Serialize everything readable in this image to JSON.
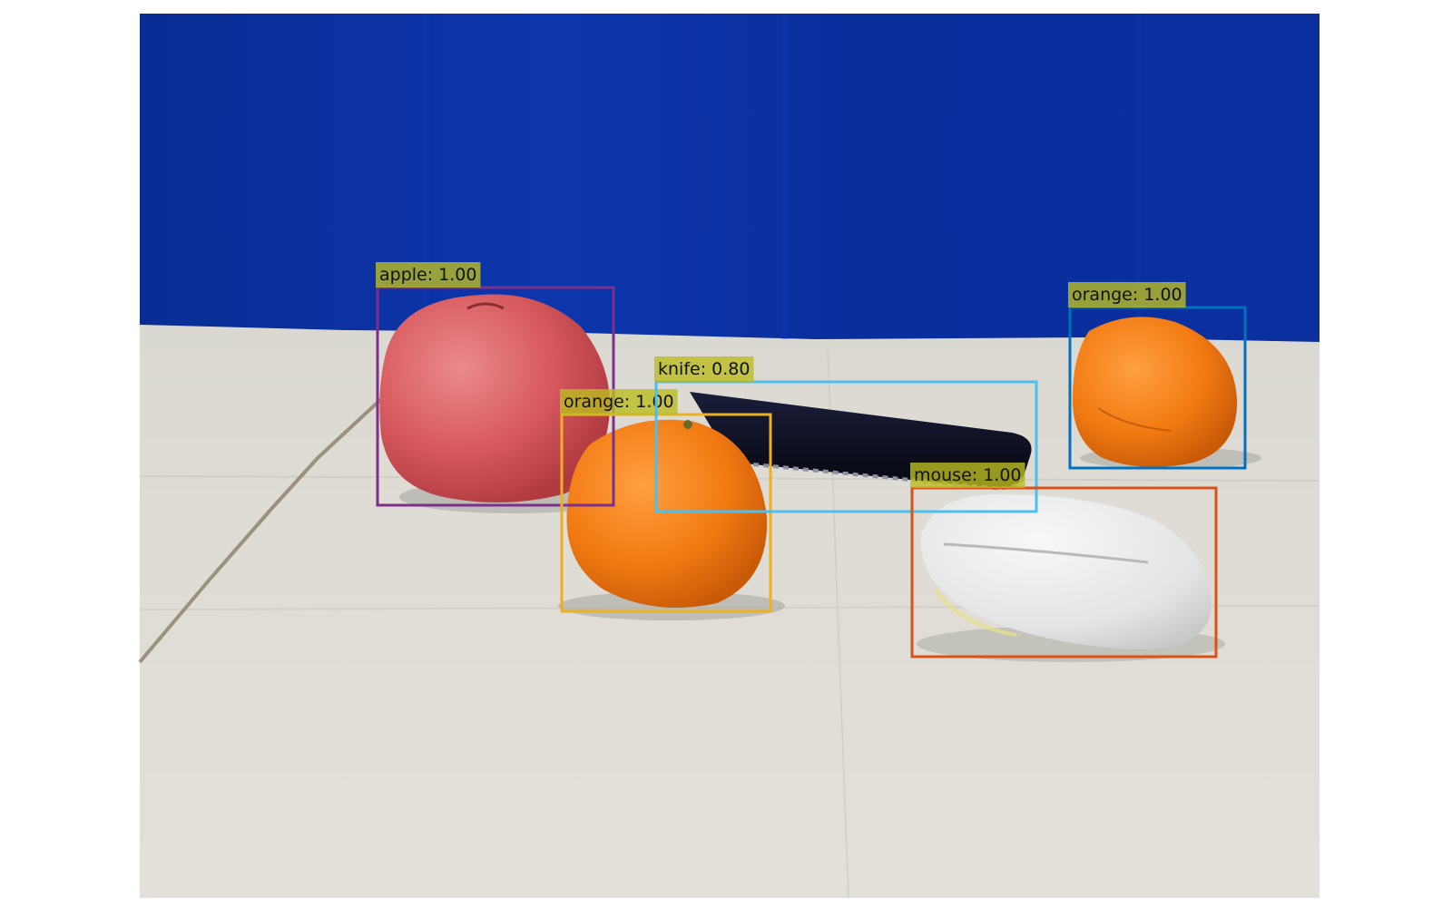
{
  "scene": {
    "background": "#ffffff",
    "backdrop_color": "#0b2f9e",
    "table_color": "#dcdad2",
    "objects": [
      {
        "name": "apple",
        "icon": "apple-icon",
        "color": "#d85a5e"
      },
      {
        "name": "orange",
        "icon": "orange-icon",
        "color": "#f07a14"
      },
      {
        "name": "orange",
        "icon": "orange-icon",
        "color": "#f07a14"
      },
      {
        "name": "knife",
        "icon": "phone-shaped-object",
        "color": "#0e1020"
      },
      {
        "name": "mouse",
        "icon": "mouse-icon",
        "color": "#e6e6e6"
      }
    ]
  },
  "detections": [
    {
      "label": "apple: 1.00",
      "class": "apple",
      "score": 1.0,
      "box_color": "#7e2f8e",
      "label_bg": "#bcbd22"
    },
    {
      "label": "orange: 1.00",
      "class": "orange",
      "score": 1.0,
      "box_color": "#edb120",
      "label_bg": "#bcbd22"
    },
    {
      "label": "knife: 0.80",
      "class": "knife",
      "score": 0.8,
      "box_color": "#4dbeee",
      "label_bg": "#bcbd22"
    },
    {
      "label": "mouse: 1.00",
      "class": "mouse",
      "score": 1.0,
      "box_color": "#d95319",
      "label_bg": "#bcbd22"
    },
    {
      "label": "orange: 1.00",
      "class": "orange",
      "score": 1.0,
      "box_color": "#0072bd",
      "label_bg": "#bcbd22"
    }
  ]
}
